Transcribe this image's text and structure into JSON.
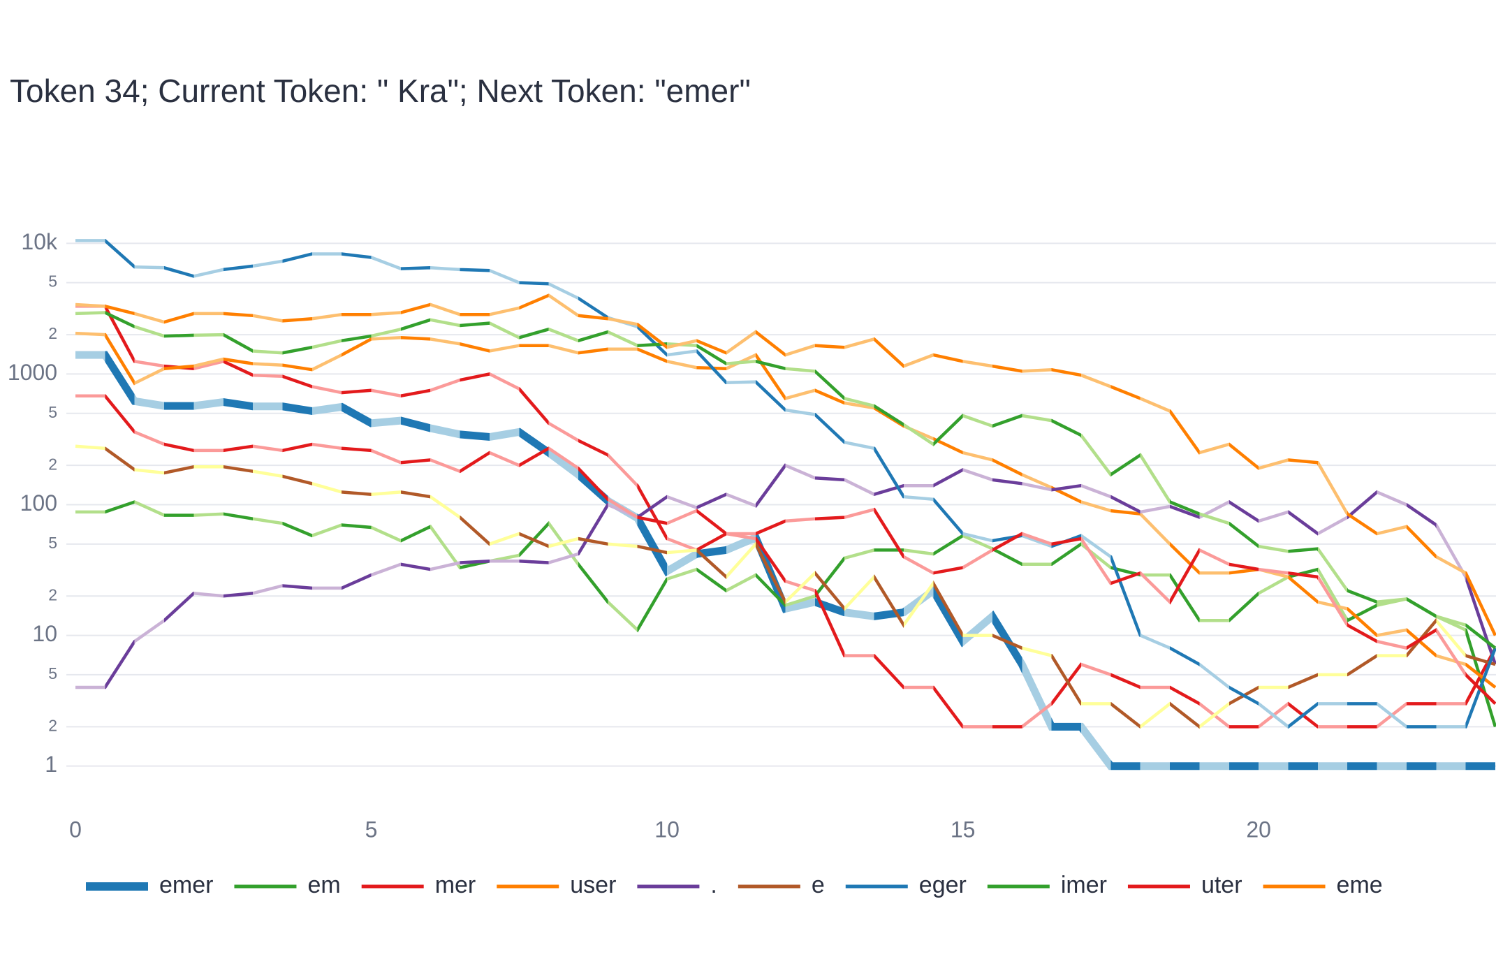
{
  "chart_data": {
    "type": "line",
    "title": "Token 34; Current Token: \" Kra\"; Next Token: \"emer\"",
    "log_y": true,
    "grid": true,
    "x": [
      0,
      0.5,
      1,
      1.5,
      2,
      2.5,
      3,
      3.5,
      4,
      4.5,
      5,
      5.5,
      6,
      6.5,
      7,
      7.5,
      8,
      8.5,
      9,
      9.5,
      10,
      10.5,
      11,
      11.5,
      12,
      12.5,
      13,
      13.5,
      14,
      14.5,
      15,
      15.5,
      16,
      16.5,
      17,
      17.5,
      18,
      18.5,
      19,
      19.5,
      20,
      20.5,
      21,
      21.5,
      22,
      22.5,
      23,
      23.5,
      24
    ],
    "xlim": [
      0,
      24
    ],
    "xticks": [
      0,
      5,
      10,
      15,
      20
    ],
    "ylim": [
      0.5,
      20000
    ],
    "yticks": [
      1,
      2,
      5,
      10,
      {
        "value": 20,
        "label": "2"
      },
      {
        "value": 50,
        "label": "5"
      },
      100,
      {
        "value": 200,
        "label": "2"
      },
      {
        "value": 500,
        "label": "5"
      },
      1000,
      {
        "value": 2000,
        "label": "2"
      },
      {
        "value": 5000,
        "label": "5"
      },
      {
        "value": 10000,
        "label": "10k"
      }
    ],
    "series": [
      {
        "name": "emer",
        "color": "#1f78b4",
        "alt_color": "#a6cee3",
        "highlight": true,
        "values": [
          1400,
          1400,
          620,
          570,
          570,
          610,
          565,
          565,
          520,
          560,
          420,
          440,
          385,
          345,
          330,
          360,
          250,
          170,
          107,
          79,
          31,
          42,
          45,
          56,
          16,
          18,
          15,
          14,
          15,
          22,
          9,
          14,
          6,
          2,
          2,
          1,
          1,
          1,
          1,
          1,
          1,
          1,
          1,
          1,
          1,
          1,
          1,
          1,
          1
        ]
      },
      {
        "name": "em",
        "color": "#33a02c",
        "alt_color": "#b2df8a",
        "values": [
          88,
          88,
          105,
          83,
          83,
          85,
          78,
          72,
          58,
          70,
          67,
          53,
          68,
          33,
          37,
          41,
          72,
          35,
          18,
          11,
          27,
          32,
          22,
          29,
          17,
          20,
          39,
          45,
          45,
          42,
          58,
          46,
          35,
          35,
          50,
          33,
          29,
          29,
          13,
          13,
          21,
          28,
          32,
          13,
          17,
          19,
          14,
          11,
          2
        ]
      },
      {
        "name": "mer",
        "color": "#e31a1c",
        "alt_color": "#fb9a99",
        "values": [
          3300,
          3300,
          1250,
          1150,
          1100,
          1250,
          980,
          960,
          800,
          720,
          750,
          680,
          750,
          900,
          1000,
          770,
          420,
          310,
          240,
          140,
          55,
          45,
          60,
          55,
          26,
          22,
          7,
          7,
          4,
          4,
          2,
          2,
          2,
          3,
          6,
          5,
          4,
          4,
          3,
          2,
          2,
          3,
          2,
          2,
          2,
          3,
          3,
          3,
          8
        ]
      },
      {
        "name": "user",
        "color": "#ff7f00",
        "alt_color": "#fdbf6f",
        "values": [
          2050,
          2000,
          850,
          1100,
          1150,
          1300,
          1200,
          1170,
          1080,
          1400,
          1850,
          1900,
          1850,
          1700,
          1500,
          1650,
          1650,
          1450,
          1550,
          1550,
          1250,
          1120,
          1100,
          1400,
          650,
          750,
          600,
          550,
          400,
          320,
          250,
          220,
          170,
          135,
          105,
          90,
          85,
          50,
          30,
          30,
          32,
          28,
          18,
          16,
          10,
          11,
          7,
          6,
          4
        ]
      },
      {
        "name": ".",
        "color": "#6a3d9a",
        "alt_color": "#cab2d6",
        "values": [
          4,
          4,
          9,
          13,
          21,
          20,
          21,
          24,
          23,
          23,
          29,
          35,
          32,
          36,
          37,
          37,
          36,
          42,
          100,
          80,
          115,
          95,
          120,
          98,
          200,
          160,
          155,
          120,
          140,
          140,
          185,
          155,
          145,
          130,
          140,
          115,
          88,
          97,
          80,
          105,
          75,
          88,
          60,
          80,
          125,
          100,
          70,
          28,
          6
        ]
      },
      {
        "name": "e",
        "color": "#b15928",
        "alt_color": "#ffff99",
        "values": [
          280,
          270,
          185,
          175,
          195,
          195,
          180,
          165,
          145,
          125,
          120,
          125,
          115,
          80,
          50,
          60,
          48,
          55,
          50,
          48,
          43,
          45,
          28,
          50,
          18,
          30,
          16,
          28,
          12,
          25,
          10,
          10,
          8,
          7,
          3,
          3,
          2,
          3,
          2,
          3,
          4,
          4,
          5,
          5,
          7,
          7,
          13,
          7,
          6
        ]
      },
      {
        "name": "eger",
        "color": "#1f78b4",
        "alt_color": "#a6cee3",
        "values": [
          10500,
          10500,
          6600,
          6500,
          5600,
          6300,
          6700,
          7300,
          8300,
          8300,
          7800,
          6400,
          6500,
          6300,
          6200,
          5000,
          4900,
          3800,
          2700,
          2300,
          1400,
          1500,
          860,
          870,
          530,
          490,
          300,
          270,
          115,
          110,
          60,
          53,
          58,
          48,
          58,
          40,
          10,
          8,
          6,
          4,
          3,
          2,
          3,
          3,
          3,
          2,
          2,
          2,
          8
        ]
      },
      {
        "name": "imer",
        "color": "#33a02c",
        "alt_color": "#b2df8a",
        "values": [
          2900,
          2950,
          2300,
          1950,
          1980,
          2000,
          1500,
          1450,
          1600,
          1800,
          1950,
          2200,
          2600,
          2350,
          2450,
          1900,
          2200,
          1800,
          2100,
          1650,
          1700,
          1650,
          1200,
          1250,
          1100,
          1050,
          650,
          570,
          410,
          290,
          480,
          400,
          480,
          440,
          340,
          170,
          240,
          105,
          85,
          72,
          48,
          44,
          46,
          22,
          18,
          19,
          14,
          12,
          8
        ]
      },
      {
        "name": "uter",
        "color": "#e31a1c",
        "alt_color": "#fb9a99",
        "values": [
          680,
          680,
          360,
          290,
          260,
          260,
          280,
          260,
          290,
          270,
          260,
          210,
          220,
          180,
          250,
          200,
          270,
          190,
          110,
          80,
          72,
          90,
          60,
          60,
          75,
          78,
          80,
          92,
          40,
          30,
          33,
          45,
          60,
          50,
          55,
          25,
          30,
          18,
          45,
          35,
          32,
          30,
          28,
          12,
          9,
          8,
          11,
          5,
          3
        ]
      },
      {
        "name": "eme",
        "color": "#ff7f00",
        "alt_color": "#fdbf6f",
        "values": [
          3400,
          3300,
          2900,
          2500,
          2900,
          2900,
          2800,
          2550,
          2650,
          2850,
          2850,
          2950,
          3400,
          2850,
          2850,
          3200,
          4000,
          2800,
          2650,
          2400,
          1600,
          1800,
          1450,
          2100,
          1400,
          1650,
          1600,
          1850,
          1150,
          1400,
          1250,
          1150,
          1050,
          1080,
          980,
          800,
          650,
          520,
          250,
          290,
          190,
          220,
          210,
          85,
          60,
          68,
          40,
          30,
          10
        ]
      }
    ]
  }
}
